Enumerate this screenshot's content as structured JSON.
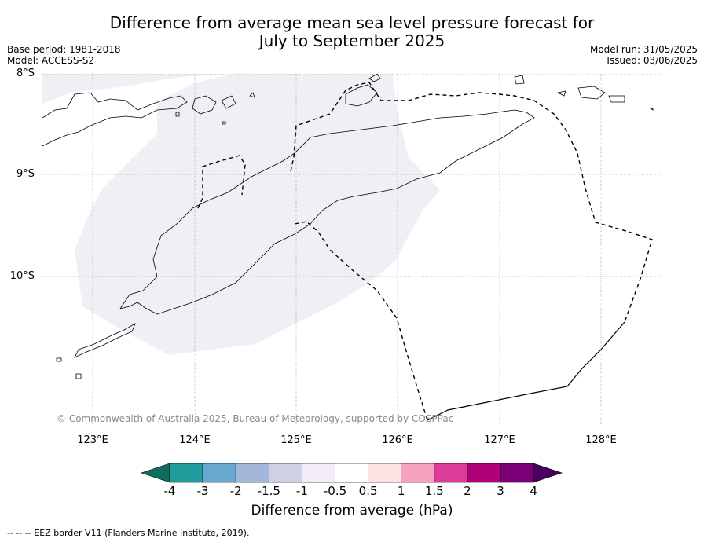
{
  "title_line1": "Difference from average mean sea level pressure forecast for",
  "title_line2": "July to September 2025",
  "meta_left": {
    "base_period": "Base period: 1981-2018",
    "model": "Model: ACCESS-S2"
  },
  "meta_right": {
    "model_run": "Model run: 31/05/2025",
    "issued": "Issued: 03/06/2025"
  },
  "latitude_labels": [
    "8°S",
    "9°S",
    "10°S"
  ],
  "longitude_labels": [
    "123°E",
    "124°E",
    "125°E",
    "126°E",
    "127°E",
    "128°E"
  ],
  "copyright": "© Commonwealth of Australia 2025, Bureau of Meteorology, supported by COSPPac",
  "colorbar": {
    "ticks": [
      "-4",
      "-3",
      "-2",
      "-1.5",
      "-1",
      "-0.5",
      "0.5",
      "1",
      "1.5",
      "2",
      "3",
      "4"
    ],
    "colors": [
      "#0e6e5e",
      "#1f9b9b",
      "#68a7cf",
      "#a4b6da",
      "#cfd0e3",
      "#f1ecf6",
      "#ffffff",
      "#fde3e2",
      "#f7a1c0",
      "#dc3b98",
      "#ae0177",
      "#7b0077",
      "#4a0060"
    ],
    "label": "Difference from average (hPa)"
  },
  "anomaly_fill_color": "#f2eef6",
  "anomaly_class": "-1 to -0.5",
  "footer": "--  --  -- EEZ border V11 (Flanders Marine Institute, 2019)."
}
